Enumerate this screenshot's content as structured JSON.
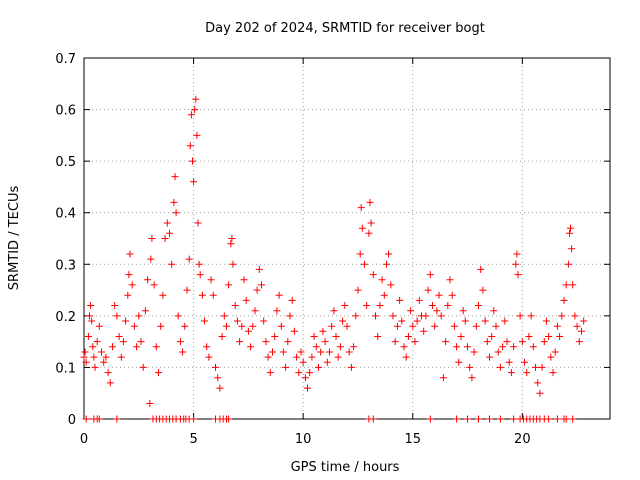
{
  "chart_data": {
    "type": "scatter",
    "title": "Day 202 of 2024, SRMTID for receiver bogt",
    "xlabel": "GPS time / hours",
    "ylabel": "SRMTID / TECUs",
    "xlim": [
      0,
      24
    ],
    "ylim": [
      0,
      0.7
    ],
    "xticks": [
      0,
      5,
      10,
      15,
      20
    ],
    "xtick_labels": [
      "0",
      "5",
      "10",
      "15",
      "20"
    ],
    "yticks": [
      0,
      0.1,
      0.2,
      0.3,
      0.4,
      0.5,
      0.6,
      0.7
    ],
    "ytick_labels": [
      "0",
      "0.1",
      "0.2",
      "0.3",
      "0.4",
      "0.5",
      "0.6",
      "0.7"
    ],
    "grid": true,
    "marker": "+",
    "series_color": "#ff0000",
    "series": [
      {
        "name": "SRMTID",
        "points": [
          [
            0.0,
            0.12
          ],
          [
            0.05,
            0.13
          ],
          [
            0.1,
            0.11
          ],
          [
            0.2,
            0.16
          ],
          [
            0.25,
            0.2
          ],
          [
            0.3,
            0.22
          ],
          [
            0.35,
            0.19
          ],
          [
            0.4,
            0.14
          ],
          [
            0.45,
            0.12
          ],
          [
            0.5,
            0.1
          ],
          [
            0.6,
            0.15
          ],
          [
            0.7,
            0.18
          ],
          [
            0.8,
            0.13
          ],
          [
            0.9,
            0.11
          ],
          [
            1.0,
            0.12
          ],
          [
            1.1,
            0.09
          ],
          [
            1.2,
            0.07
          ],
          [
            1.3,
            0.14
          ],
          [
            1.4,
            0.22
          ],
          [
            1.5,
            0.2
          ],
          [
            1.6,
            0.16
          ],
          [
            1.7,
            0.12
          ],
          [
            1.8,
            0.15
          ],
          [
            1.9,
            0.19
          ],
          [
            2.0,
            0.24
          ],
          [
            2.05,
            0.28
          ],
          [
            2.1,
            0.32
          ],
          [
            2.2,
            0.26
          ],
          [
            2.3,
            0.18
          ],
          [
            2.4,
            0.14
          ],
          [
            2.5,
            0.2
          ],
          [
            2.6,
            0.15
          ],
          [
            2.7,
            0.1
          ],
          [
            2.8,
            0.21
          ],
          [
            2.9,
            0.27
          ],
          [
            3.0,
            0.03
          ],
          [
            3.05,
            0.31
          ],
          [
            3.1,
            0.35
          ],
          [
            3.2,
            0.26
          ],
          [
            3.3,
            0.14
          ],
          [
            3.4,
            0.09
          ],
          [
            3.5,
            0.18
          ],
          [
            3.6,
            0.24
          ],
          [
            3.7,
            0.35
          ],
          [
            3.8,
            0.38
          ],
          [
            3.9,
            0.36
          ],
          [
            4.0,
            0.3
          ],
          [
            4.1,
            0.42
          ],
          [
            4.15,
            0.47
          ],
          [
            4.2,
            0.4
          ],
          [
            4.3,
            0.2
          ],
          [
            4.4,
            0.15
          ],
          [
            4.5,
            0.13
          ],
          [
            4.6,
            0.18
          ],
          [
            4.7,
            0.25
          ],
          [
            4.8,
            0.31
          ],
          [
            4.85,
            0.53
          ],
          [
            4.9,
            0.59
          ],
          [
            4.95,
            0.5
          ],
          [
            5.0,
            0.46
          ],
          [
            5.05,
            0.6
          ],
          [
            5.1,
            0.62
          ],
          [
            5.15,
            0.55
          ],
          [
            5.2,
            0.38
          ],
          [
            5.25,
            0.3
          ],
          [
            5.3,
            0.28
          ],
          [
            5.4,
            0.24
          ],
          [
            5.5,
            0.19
          ],
          [
            5.6,
            0.14
          ],
          [
            5.7,
            0.12
          ],
          [
            5.8,
            0.27
          ],
          [
            5.9,
            0.24
          ],
          [
            6.0,
            0.1
          ],
          [
            6.1,
            0.08
          ],
          [
            6.2,
            0.06
          ],
          [
            6.3,
            0.16
          ],
          [
            6.4,
            0.2
          ],
          [
            6.5,
            0.18
          ],
          [
            6.6,
            0.26
          ],
          [
            6.7,
            0.34
          ],
          [
            6.75,
            0.35
          ],
          [
            6.8,
            0.3
          ],
          [
            6.9,
            0.22
          ],
          [
            7.0,
            0.19
          ],
          [
            7.1,
            0.15
          ],
          [
            7.2,
            0.18
          ],
          [
            7.3,
            0.27
          ],
          [
            7.4,
            0.23
          ],
          [
            7.5,
            0.17
          ],
          [
            7.6,
            0.14
          ],
          [
            7.7,
            0.18
          ],
          [
            7.8,
            0.21
          ],
          [
            7.9,
            0.25
          ],
          [
            8.0,
            0.29
          ],
          [
            8.1,
            0.26
          ],
          [
            8.2,
            0.19
          ],
          [
            8.3,
            0.15
          ],
          [
            8.4,
            0.12
          ],
          [
            8.5,
            0.09
          ],
          [
            8.6,
            0.13
          ],
          [
            8.7,
            0.16
          ],
          [
            8.8,
            0.21
          ],
          [
            8.9,
            0.24
          ],
          [
            9.0,
            0.18
          ],
          [
            9.1,
            0.13
          ],
          [
            9.2,
            0.1
          ],
          [
            9.3,
            0.15
          ],
          [
            9.4,
            0.2
          ],
          [
            9.5,
            0.23
          ],
          [
            9.6,
            0.17
          ],
          [
            9.7,
            0.12
          ],
          [
            9.8,
            0.09
          ],
          [
            9.9,
            0.13
          ],
          [
            10.0,
            0.11
          ],
          [
            10.1,
            0.08
          ],
          [
            10.2,
            0.06
          ],
          [
            10.3,
            0.09
          ],
          [
            10.4,
            0.12
          ],
          [
            10.5,
            0.16
          ],
          [
            10.6,
            0.14
          ],
          [
            10.7,
            0.1
          ],
          [
            10.8,
            0.13
          ],
          [
            10.9,
            0.17
          ],
          [
            11.0,
            0.15
          ],
          [
            11.1,
            0.11
          ],
          [
            11.2,
            0.13
          ],
          [
            11.3,
            0.18
          ],
          [
            11.4,
            0.21
          ],
          [
            11.5,
            0.16
          ],
          [
            11.6,
            0.12
          ],
          [
            11.7,
            0.14
          ],
          [
            11.8,
            0.19
          ],
          [
            11.9,
            0.22
          ],
          [
            12.0,
            0.18
          ],
          [
            12.1,
            0.13
          ],
          [
            12.2,
            0.1
          ],
          [
            12.3,
            0.14
          ],
          [
            12.4,
            0.2
          ],
          [
            12.5,
            0.25
          ],
          [
            12.6,
            0.32
          ],
          [
            12.65,
            0.41
          ],
          [
            12.7,
            0.37
          ],
          [
            12.8,
            0.3
          ],
          [
            12.9,
            0.22
          ],
          [
            13.0,
            0.36
          ],
          [
            13.05,
            0.42
          ],
          [
            13.1,
            0.38
          ],
          [
            13.2,
            0.28
          ],
          [
            13.3,
            0.2
          ],
          [
            13.4,
            0.16
          ],
          [
            13.5,
            0.22
          ],
          [
            13.6,
            0.27
          ],
          [
            13.7,
            0.24
          ],
          [
            13.8,
            0.3
          ],
          [
            13.9,
            0.32
          ],
          [
            14.0,
            0.26
          ],
          [
            14.1,
            0.2
          ],
          [
            14.2,
            0.15
          ],
          [
            14.3,
            0.18
          ],
          [
            14.4,
            0.23
          ],
          [
            14.5,
            0.19
          ],
          [
            14.6,
            0.14
          ],
          [
            14.7,
            0.12
          ],
          [
            14.8,
            0.16
          ],
          [
            14.9,
            0.21
          ],
          [
            15.0,
            0.18
          ],
          [
            15.1,
            0.15
          ],
          [
            15.2,
            0.19
          ],
          [
            15.3,
            0.23
          ],
          [
            15.4,
            0.2
          ],
          [
            15.5,
            0.17
          ],
          [
            15.6,
            0.2
          ],
          [
            15.7,
            0.25
          ],
          [
            15.8,
            0.28
          ],
          [
            15.9,
            0.22
          ],
          [
            16.0,
            0.18
          ],
          [
            16.1,
            0.21
          ],
          [
            16.2,
            0.24
          ],
          [
            16.3,
            0.2
          ],
          [
            16.4,
            0.08
          ],
          [
            16.5,
            0.15
          ],
          [
            16.6,
            0.22
          ],
          [
            16.7,
            0.27
          ],
          [
            16.8,
            0.24
          ],
          [
            16.9,
            0.18
          ],
          [
            17.0,
            0.14
          ],
          [
            17.1,
            0.11
          ],
          [
            17.2,
            0.16
          ],
          [
            17.3,
            0.21
          ],
          [
            17.4,
            0.19
          ],
          [
            17.5,
            0.14
          ],
          [
            17.6,
            0.1
          ],
          [
            17.7,
            0.08
          ],
          [
            17.8,
            0.13
          ],
          [
            17.9,
            0.18
          ],
          [
            18.0,
            0.22
          ],
          [
            18.1,
            0.29
          ],
          [
            18.2,
            0.25
          ],
          [
            18.3,
            0.19
          ],
          [
            18.4,
            0.15
          ],
          [
            18.5,
            0.12
          ],
          [
            18.6,
            0.16
          ],
          [
            18.7,
            0.21
          ],
          [
            18.8,
            0.18
          ],
          [
            18.9,
            0.13
          ],
          [
            19.0,
            0.1
          ],
          [
            19.1,
            0.14
          ],
          [
            19.2,
            0.19
          ],
          [
            19.3,
            0.15
          ],
          [
            19.4,
            0.11
          ],
          [
            19.5,
            0.09
          ],
          [
            19.6,
            0.14
          ],
          [
            19.7,
            0.3
          ],
          [
            19.75,
            0.32
          ],
          [
            19.8,
            0.28
          ],
          [
            19.9,
            0.2
          ],
          [
            20.0,
            0.15
          ],
          [
            20.1,
            0.11
          ],
          [
            20.2,
            0.09
          ],
          [
            20.3,
            0.16
          ],
          [
            20.4,
            0.2
          ],
          [
            20.5,
            0.14
          ],
          [
            20.6,
            0.1
          ],
          [
            20.7,
            0.07
          ],
          [
            20.8,
            0.05
          ],
          [
            20.9,
            0.1
          ],
          [
            21.0,
            0.15
          ],
          [
            21.1,
            0.19
          ],
          [
            21.2,
            0.16
          ],
          [
            21.3,
            0.12
          ],
          [
            21.4,
            0.09
          ],
          [
            21.5,
            0.13
          ],
          [
            21.6,
            0.18
          ],
          [
            21.7,
            0.16
          ],
          [
            21.8,
            0.2
          ],
          [
            21.9,
            0.23
          ],
          [
            22.0,
            0.26
          ],
          [
            22.1,
            0.3
          ],
          [
            22.15,
            0.36
          ],
          [
            22.2,
            0.37
          ],
          [
            22.25,
            0.33
          ],
          [
            22.3,
            0.26
          ],
          [
            22.4,
            0.2
          ],
          [
            22.5,
            0.18
          ],
          [
            22.6,
            0.15
          ],
          [
            22.7,
            0.17
          ],
          [
            22.8,
            0.19
          ]
        ],
        "zero_points": [
          0.1,
          0.45,
          0.6,
          0.7,
          1.5,
          3.15,
          3.3,
          3.45,
          3.6,
          3.75,
          3.9,
          4.05,
          4.2,
          4.4,
          4.55,
          4.65,
          4.8,
          5.0,
          6.0,
          6.2,
          6.35,
          6.5,
          6.6,
          13.0,
          13.2,
          15.8,
          17.0,
          17.5,
          18.0,
          18.5,
          19.0,
          19.6,
          19.9,
          20.05,
          20.2,
          20.35,
          20.5,
          20.65,
          20.8,
          21.0,
          21.2,
          21.6,
          21.9,
          22.0,
          22.3
        ]
      }
    ]
  }
}
